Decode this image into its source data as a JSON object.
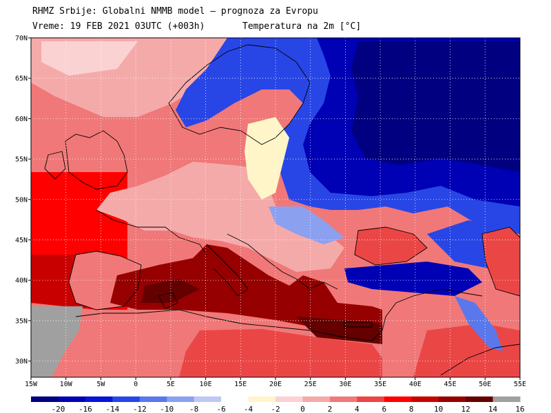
{
  "header": {
    "title": "RHMZ Srbije: Globalni NMMB model — prognoza za Evropu",
    "valid_time": "Vreme: 19 FEB 2021 03UTC (+003h)",
    "parameter": "Temperatura na 2m [°C]"
  },
  "map": {
    "lon_range": [
      -15,
      55
    ],
    "lat_range": [
      28,
      70
    ],
    "lon_ticks": [
      "15W",
      "10W",
      "5W",
      "0",
      "5E",
      "10E",
      "15E",
      "20E",
      "25E",
      "30E",
      "35E",
      "40E",
      "45E",
      "50E",
      "55E"
    ],
    "lat_ticks": [
      "70N",
      "65N",
      "60N",
      "55N",
      "50N",
      "45N",
      "40N",
      "35N",
      "30N"
    ],
    "grid": true
  },
  "colorbar": {
    "bins": [
      {
        "color": "#000080"
      },
      {
        "color": "#0000b4"
      },
      {
        "color": "#0a14d7"
      },
      {
        "color": "#2846e6"
      },
      {
        "color": "#5a78eb"
      },
      {
        "color": "#8ca0f0"
      },
      {
        "color": "#bec8f5"
      },
      {
        "color": "#ffffff"
      },
      {
        "color": "#fff5c8"
      },
      {
        "color": "#fad2d2"
      },
      {
        "color": "#f5aaaa"
      },
      {
        "color": "#f07878"
      },
      {
        "color": "#eb4646"
      },
      {
        "color": "#ff0000"
      },
      {
        "color": "#c80000"
      },
      {
        "color": "#960000"
      },
      {
        "color": "#640000"
      },
      {
        "color": "#a0a0a0"
      }
    ],
    "labels": [
      "-20",
      "-16",
      "-14",
      "-12",
      "-10",
      "-8",
      "-6",
      "-4",
      "-2",
      "0",
      "2",
      "4",
      "6",
      "8",
      "10",
      "12",
      "14",
      "16"
    ]
  },
  "colors": {
    "ocean_warm": "#f07878",
    "sea_hot": "#960000",
    "land_mild": "#f5aaaa",
    "land_cold": "#0000b4",
    "land_very_cold": "#000080",
    "outside_domain": "#a0a0a0"
  }
}
